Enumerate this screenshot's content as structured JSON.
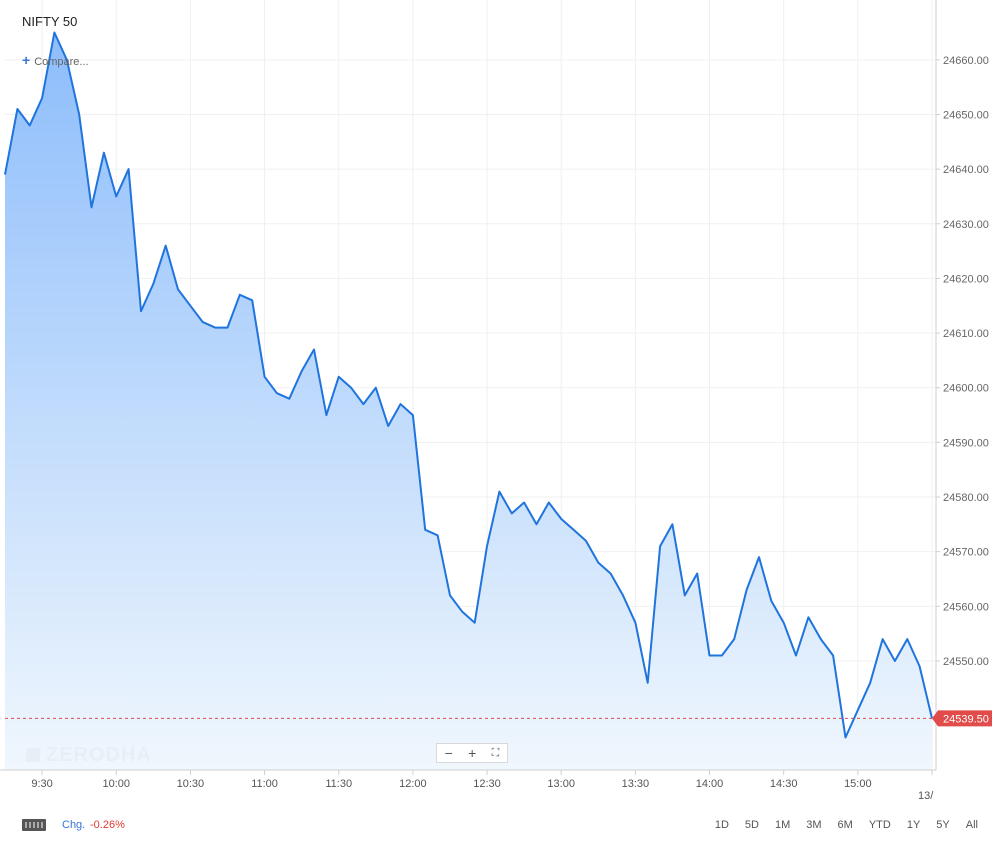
{
  "header": {
    "symbol": "NIFTY 50",
    "compare_label": "Compare..."
  },
  "watermark": "ZERODHA",
  "footer": {
    "chg_label": "Chg.",
    "chg_value": "-0.26%",
    "ranges": [
      "1D",
      "5D",
      "1M",
      "3M",
      "6M",
      "YTD",
      "1Y",
      "5Y",
      "All"
    ]
  },
  "colors": {
    "line": "#1f74de",
    "fill_top": "#8dbdfb",
    "fill_bottom": "#f0f7fd",
    "last_price": "#e14c4a"
  },
  "chart_data": {
    "type": "area",
    "x_tick_labels": [
      "9:30",
      "10:00",
      "10:30",
      "11:00",
      "11:30",
      "12:00",
      "12:30",
      "13:00",
      "13:30",
      "14:00",
      "14:30",
      "15:00",
      "13/"
    ],
    "y_tick_labels": [
      "24660.00",
      "24650.00",
      "24640.00",
      "24630.00",
      "24620.00",
      "24610.00",
      "24600.00",
      "24590.00",
      "24580.00",
      "24570.00",
      "24560.00",
      "24550.00"
    ],
    "ylim": [
      24533,
      24669
    ],
    "last_price": "24539.50",
    "last_price_value": 24539.5,
    "interval_minutes": 5,
    "start_time": "9:15",
    "values": [
      24639,
      24651,
      24648,
      24653,
      24665,
      24660,
      24650,
      24633,
      24643,
      24635,
      24640,
      24614,
      24619,
      24626,
      24618,
      24615,
      24612,
      24611,
      24611,
      24617,
      24616,
      24602,
      24599,
      24598,
      24603,
      24607,
      24595,
      24602,
      24600,
      24597,
      24600,
      24593,
      24597,
      24595,
      24574,
      24573,
      24562,
      24559,
      24557,
      24571,
      24581,
      24577,
      24579,
      24575,
      24579,
      24576,
      24574,
      24572,
      24568,
      24566,
      24562,
      24557,
      24546,
      24571,
      24575,
      24562,
      24566,
      24551,
      24551,
      24554,
      24563,
      24569,
      24561,
      24557,
      24551,
      24558,
      24554,
      24551,
      24536,
      24541,
      24546,
      24554,
      24550,
      24554,
      24549,
      24539.5
    ]
  }
}
